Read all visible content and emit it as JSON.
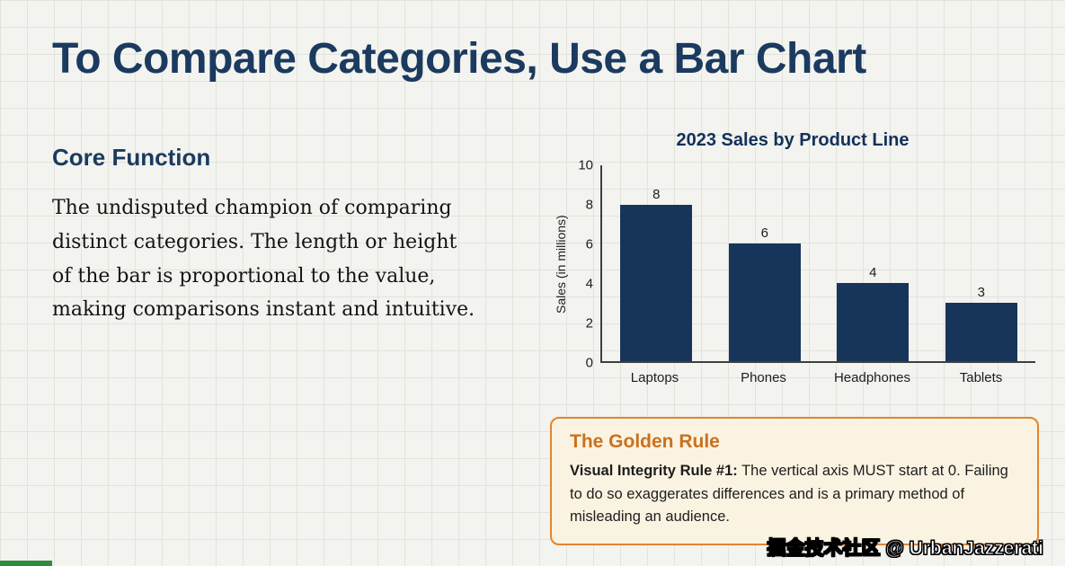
{
  "title": "To Compare Categories, Use a Bar Chart",
  "left": {
    "heading": "Core Function",
    "body": "The undisputed champion of comparing distinct categories. The length or height of the bar is proportional to the value, making comparisons instant and intuitive."
  },
  "chart_data": {
    "type": "bar",
    "title": "2023 Sales by Product Line",
    "categories": [
      "Laptops",
      "Phones",
      "Headphones",
      "Tablets"
    ],
    "values": [
      8,
      6,
      4,
      3
    ],
    "xlabel": "",
    "ylabel": "Sales (in millions)",
    "ylim": [
      0,
      10
    ],
    "ytick_step": 2,
    "yticks": [
      0,
      2,
      4,
      6,
      8,
      10
    ],
    "bar_color": "#17355a",
    "grid": false,
    "legend": false,
    "value_labels_shown": true
  },
  "callout": {
    "heading": "The Golden Rule",
    "bold_lead": "Visual Integrity Rule #1:",
    "body": "The vertical axis MUST start at 0. Failing to do so exaggerates differences and is a primary method of misleading an audience.",
    "accent_color": "#c9711f",
    "border_color": "#e2862c"
  },
  "watermark": "掘金技术社区 @ UrbanJazzerati",
  "colors": {
    "heading_navy": "#1b3a5f",
    "background": "#f3f3ef"
  }
}
